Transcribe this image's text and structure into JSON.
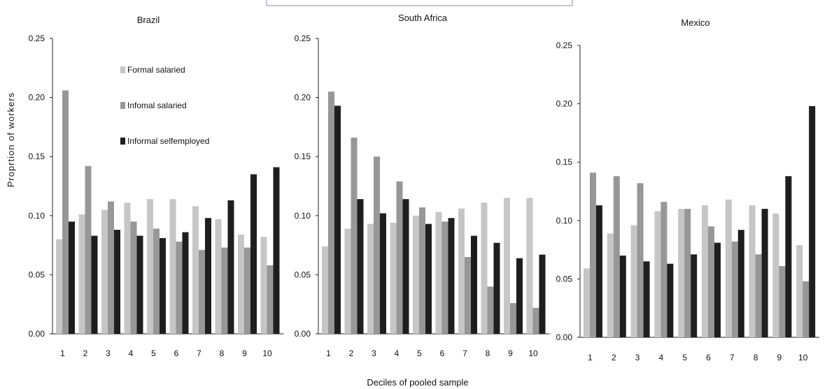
{
  "colors": {
    "formal_salaried": "#c6c6c6",
    "informal_salaried": "#979797",
    "informal_selfemployed": "#1e1e1e"
  },
  "legend": {
    "items": [
      "Formal salaried",
      "Infomal salaried",
      "Informal selfemployed"
    ]
  },
  "ylabel": "Proprtion of workers",
  "xlabel": "Deciles of pooled sample",
  "chart_data": [
    {
      "type": "bar",
      "title": "Brazil",
      "categories": [
        "1",
        "2",
        "3",
        "4",
        "5",
        "6",
        "7",
        "8",
        "9",
        "10"
      ],
      "ylim": [
        0,
        0.25
      ],
      "yticks": [
        "0.00",
        "0.05",
        "0.10",
        "0.15",
        "0.20",
        "0.25"
      ],
      "legend_position": "top-right",
      "series": [
        {
          "name": "Formal salaried",
          "values": [
            0.08,
            0.101,
            0.105,
            0.111,
            0.114,
            0.114,
            0.108,
            0.097,
            0.084,
            0.082
          ]
        },
        {
          "name": "Infomal salaried",
          "values": [
            0.206,
            0.142,
            0.112,
            0.095,
            0.089,
            0.078,
            0.071,
            0.073,
            0.073,
            0.058
          ]
        },
        {
          "name": "Informal selfemployed",
          "values": [
            0.095,
            0.083,
            0.088,
            0.083,
            0.081,
            0.086,
            0.098,
            0.113,
            0.135,
            0.141
          ]
        }
      ]
    },
    {
      "type": "bar",
      "title": "South Africa",
      "categories": [
        "1",
        "2",
        "3",
        "4",
        "5",
        "6",
        "7",
        "8",
        "9",
        "10"
      ],
      "ylim": [
        0,
        0.25
      ],
      "yticks": [
        "0.00",
        "0.05",
        "0.10",
        "0.15",
        "0.20",
        "0.25"
      ],
      "series": [
        {
          "name": "Formal salaried",
          "values": [
            0.074,
            0.089,
            0.093,
            0.094,
            0.1,
            0.103,
            0.106,
            0.111,
            0.115,
            0.115
          ]
        },
        {
          "name": "Infomal salaried",
          "values": [
            0.205,
            0.166,
            0.15,
            0.129,
            0.107,
            0.095,
            0.065,
            0.04,
            0.026,
            0.022
          ]
        },
        {
          "name": "Informal selfemployed",
          "values": [
            0.193,
            0.114,
            0.102,
            0.114,
            0.093,
            0.098,
            0.083,
            0.077,
            0.064,
            0.067
          ]
        }
      ]
    },
    {
      "type": "bar",
      "title": "Mexico",
      "categories": [
        "1",
        "2",
        "3",
        "4",
        "5",
        "6",
        "7",
        "8",
        "9",
        "10"
      ],
      "ylim": [
        0,
        0.25
      ],
      "yticks": [
        "0.00",
        "0.05",
        "0.10",
        "0.15",
        "0.20",
        "0.25"
      ],
      "series": [
        {
          "name": "Formal salaried",
          "values": [
            0.059,
            0.089,
            0.096,
            0.108,
            0.11,
            0.113,
            0.118,
            0.113,
            0.106,
            0.079
          ]
        },
        {
          "name": "Infomal salaried",
          "values": [
            0.141,
            0.138,
            0.132,
            0.116,
            0.11,
            0.095,
            0.082,
            0.071,
            0.061,
            0.048
          ]
        },
        {
          "name": "Informal selfemployed",
          "values": [
            0.113,
            0.07,
            0.065,
            0.063,
            0.071,
            0.081,
            0.092,
            0.11,
            0.138,
            0.198
          ]
        }
      ]
    }
  ]
}
